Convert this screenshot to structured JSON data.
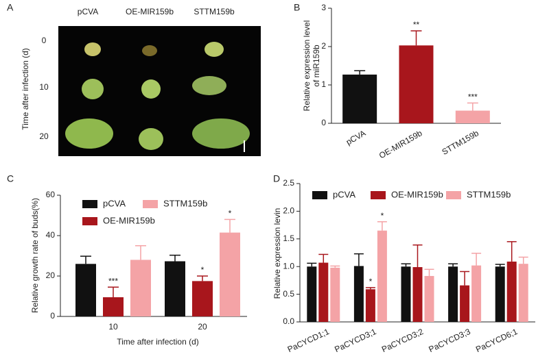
{
  "figure_a": {
    "panel": "A",
    "columns": [
      "pCVA",
      "OE-MIR159b",
      "STTM159b"
    ],
    "rows": [
      "0",
      "10",
      "20"
    ],
    "row_title": "Time after infection (d)"
  },
  "chart_data": [
    {
      "type": "bar",
      "panel": "B",
      "ylabel": [
        "Relative expression level",
        "of miR159b"
      ],
      "categories": [
        "pCVA",
        "OE-MIR159b",
        "STTM159b"
      ],
      "series": [
        {
          "colors": [
            "#111111",
            "#a8161c",
            "#f4a3a6"
          ],
          "values": [
            1.27,
            2.03,
            0.33
          ],
          "errors": [
            0.1,
            0.38,
            0.2
          ],
          "annotations": [
            null,
            "**",
            "***"
          ]
        }
      ],
      "ylim": [
        0,
        3
      ],
      "yticks": [
        0,
        1,
        2,
        3
      ]
    },
    {
      "type": "bar",
      "panel": "C",
      "ylabel": "Relative growth rate of buds(%)",
      "xlabel": "Time after infection (d)",
      "categories": [
        "10",
        "20"
      ],
      "series": [
        {
          "name": "pCVA",
          "color": "#111111",
          "values": [
            26,
            27.3
          ],
          "errors": [
            3.8,
            3
          ],
          "annotations": [
            null,
            null
          ]
        },
        {
          "name": "OE-MIR159b",
          "color": "#a8161c",
          "values": [
            9.5,
            17.5
          ],
          "errors": [
            5,
            2.5
          ],
          "annotations": [
            "***",
            "*"
          ]
        },
        {
          "name": "STTM159b",
          "color": "#f4a3a6",
          "values": [
            28,
            41.5
          ],
          "errors": [
            7,
            6.5
          ],
          "annotations": [
            null,
            "*"
          ]
        }
      ],
      "ylim": [
        0,
        60
      ],
      "yticks": [
        0,
        20,
        40,
        60
      ]
    },
    {
      "type": "bar",
      "panel": "D",
      "ylabel": "Relative expression levin",
      "categories": [
        "PaCYCD1;1",
        "PaCYCD3;1",
        "PaCYCD3;2",
        "PaCYCD3;3",
        "PaCYCD6;1"
      ],
      "series": [
        {
          "name": "pCVA",
          "color": "#111111",
          "values": [
            1.0,
            1.01,
            1.0,
            1.0,
            1.0
          ],
          "errors": [
            0.06,
            0.22,
            0.05,
            0.05,
            0.04
          ],
          "annotations": [
            null,
            null,
            null,
            null,
            null
          ]
        },
        {
          "name": "OE-MIR159b",
          "color": "#a8161c",
          "values": [
            1.07,
            0.59,
            0.99,
            0.66,
            1.09
          ],
          "errors": [
            0.15,
            0.03,
            0.4,
            0.25,
            0.36
          ],
          "annotations": [
            null,
            "*",
            null,
            null,
            null
          ]
        },
        {
          "name": "STTM159b",
          "color": "#f4a3a6",
          "values": [
            0.98,
            1.65,
            0.83,
            1.02,
            1.05
          ],
          "errors": [
            0.03,
            0.16,
            0.12,
            0.22,
            0.12
          ],
          "annotations": [
            null,
            "*",
            null,
            null,
            null
          ]
        }
      ],
      "ylim": [
        0,
        2.5
      ],
      "yticks": [
        {
          "value": 0,
          "label": "0.0"
        },
        0.5,
        {
          "value": 1,
          "label": "1.0"
        },
        1.5,
        {
          "value": 2,
          "label": "2.0"
        },
        2.5
      ]
    }
  ]
}
